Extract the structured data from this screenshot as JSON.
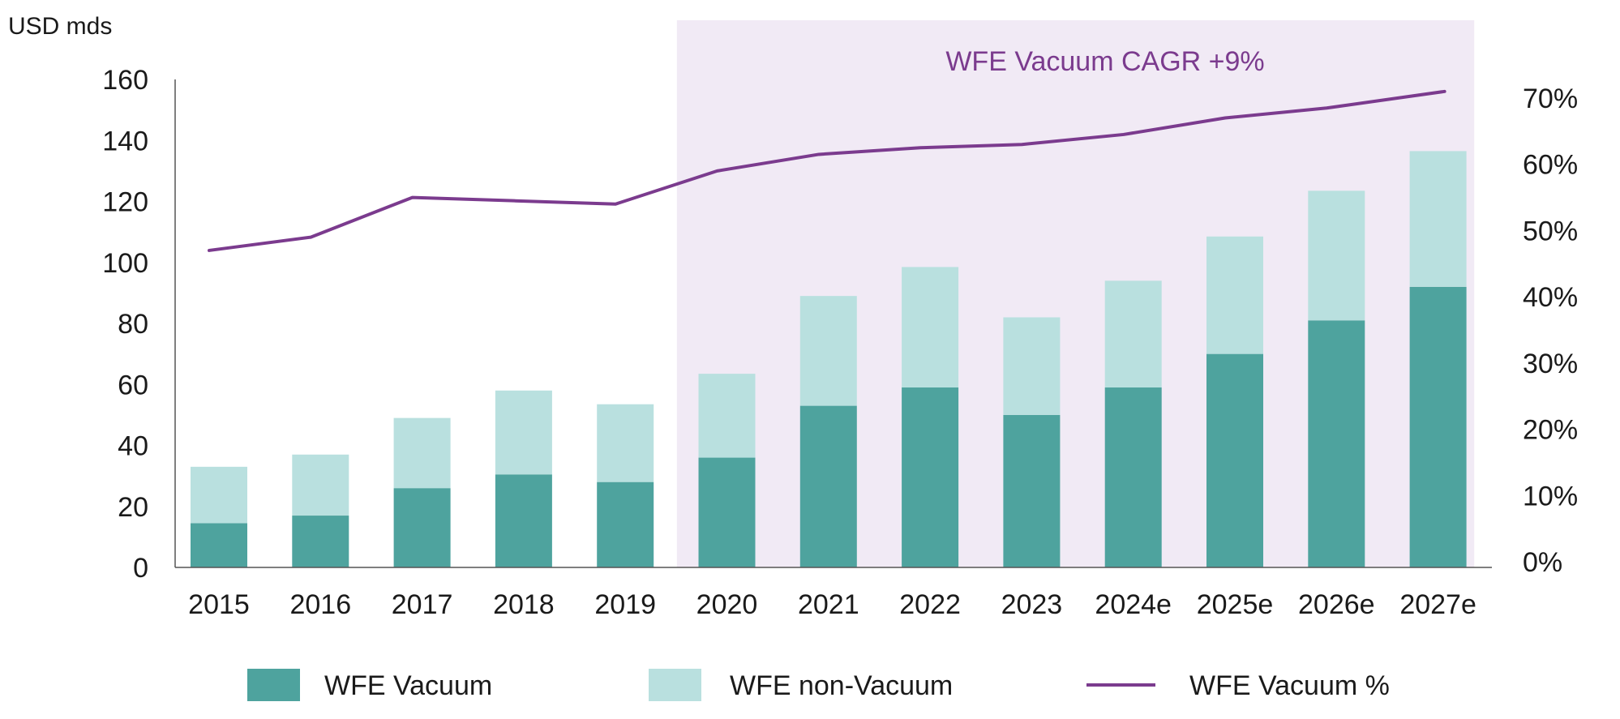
{
  "chart_data": {
    "type": "bar",
    "stacked": true,
    "unit_label": "USD mds",
    "annotation": "WFE Vacuum CAGR +9%",
    "categories": [
      "2015",
      "2016",
      "2017",
      "2018",
      "2019",
      "2020",
      "2021",
      "2022",
      "2023",
      "2024e",
      "2025e",
      "2026e",
      "2027e"
    ],
    "series": [
      {
        "name": "WFE Vacuum",
        "type": "bar",
        "axis": "left",
        "color": "#4ea39e",
        "values": [
          14.5,
          17,
          26,
          30.5,
          28,
          36,
          53,
          59,
          50,
          59,
          70,
          81,
          92
        ]
      },
      {
        "name": "WFE non-Vacuum",
        "type": "bar",
        "axis": "left",
        "color": "#b9e0df",
        "values": [
          18.5,
          20,
          23,
          27.5,
          25.5,
          27.5,
          36,
          39.5,
          32,
          35,
          38.5,
          42.5,
          44.5
        ]
      },
      {
        "name": "WFE Vacuum %",
        "type": "line",
        "axis": "right",
        "color": "#7b3b8e",
        "values": [
          0.47,
          0.49,
          0.55,
          0.545,
          0.54,
          0.59,
          0.615,
          0.625,
          0.63,
          0.645,
          0.67,
          0.685,
          0.71
        ]
      }
    ],
    "left_axis": {
      "ylim": [
        0,
        160
      ],
      "ticks": [
        0,
        20,
        40,
        60,
        80,
        100,
        120,
        140,
        160
      ]
    },
    "right_axis": {
      "ylim": [
        0,
        0.7
      ],
      "ticks": [
        0,
        0.1,
        0.2,
        0.3,
        0.4,
        0.5,
        0.6,
        0.7
      ],
      "tick_labels": [
        "0%",
        "10%",
        "20%",
        "30%",
        "40%",
        "50%",
        "60%",
        "70%"
      ]
    },
    "highlight_range": {
      "from": "2020",
      "to": "2027e",
      "color": "#f1eaf5"
    },
    "legend_position": "bottom",
    "grid": false
  }
}
